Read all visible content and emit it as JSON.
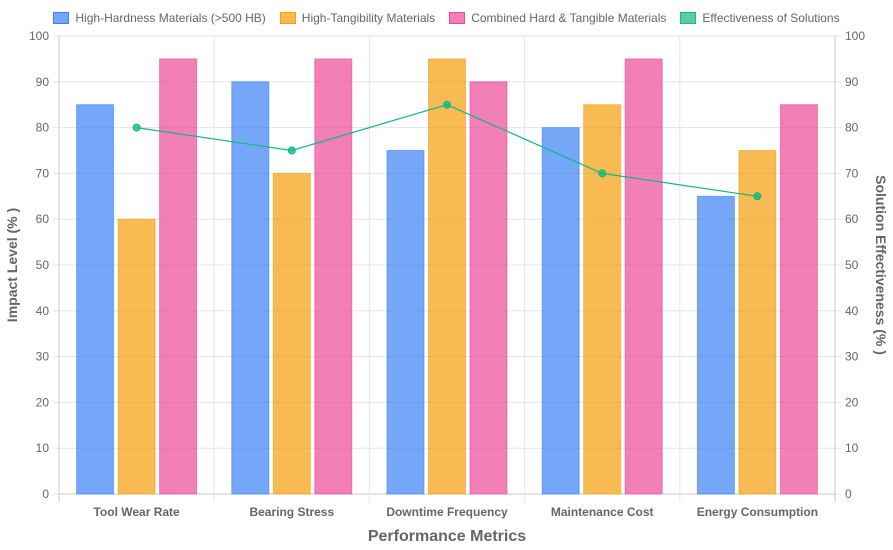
{
  "chart_data": {
    "type": "bar",
    "categories": [
      "Tool Wear Rate",
      "Bearing Stress",
      "Downtime Frequency",
      "Maintenance Cost",
      "Energy Consumption"
    ],
    "series": [
      {
        "name": "High-Hardness Materials (>500 HB)",
        "type": "bar",
        "axis": "left",
        "values": [
          85,
          90,
          75,
          80,
          65
        ],
        "fill": "#3b82f6",
        "border": "#3b82f6"
      },
      {
        "name": "High-Tangibility Materials",
        "type": "bar",
        "axis": "left",
        "values": [
          60,
          70,
          95,
          85,
          75
        ],
        "fill": "#f59e0b",
        "border": "#f59e0b"
      },
      {
        "name": "Combined Hard & Tangible Materials",
        "type": "bar",
        "axis": "left",
        "values": [
          95,
          95,
          90,
          95,
          85
        ],
        "fill": "#ec4899",
        "border": "#ec4899"
      },
      {
        "name": "Effectiveness of Solutions",
        "type": "line",
        "axis": "right",
        "values": [
          80,
          75,
          85,
          70,
          65
        ],
        "fill": "#10b981",
        "border": "#10b981"
      }
    ],
    "xlabel": "Performance Metrics",
    "ylabel": "Impact Level (% )",
    "y2label": "Solution Effectiveness (% )",
    "ylim": [
      0,
      100
    ],
    "y2lim": [
      0,
      100
    ],
    "yticks": [
      "0",
      "10",
      "20",
      "30",
      "40",
      "50",
      "60",
      "70",
      "80",
      "90",
      "100"
    ],
    "grid": true,
    "legend_position": "top"
  }
}
